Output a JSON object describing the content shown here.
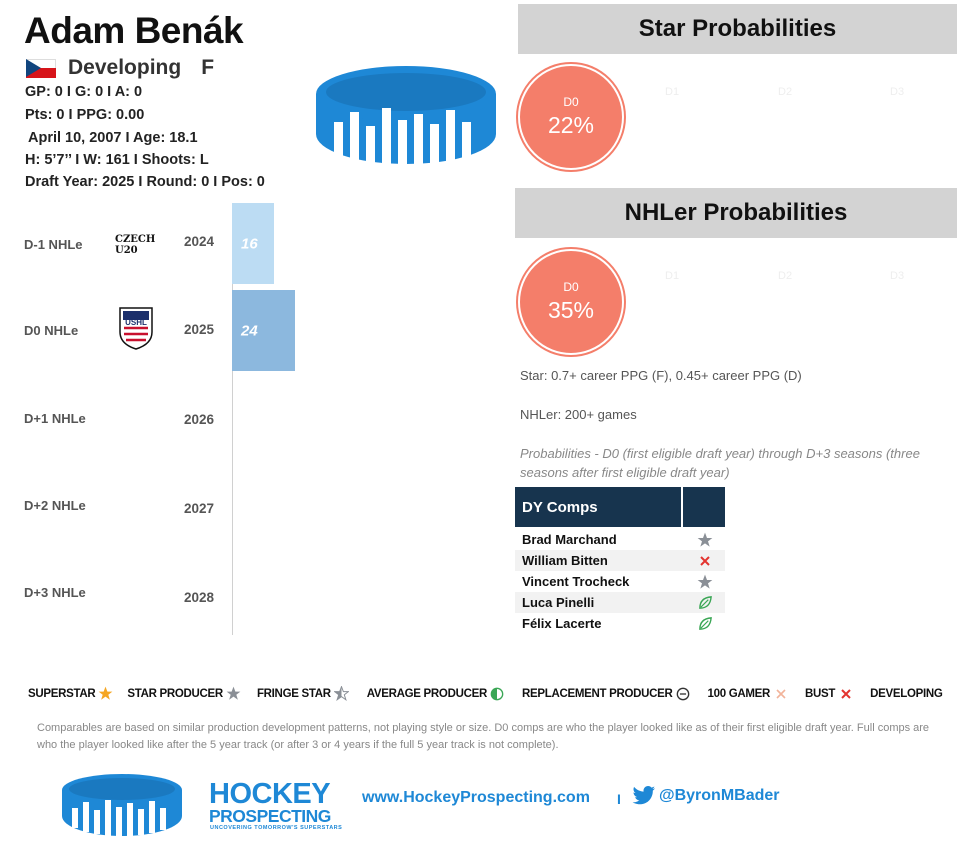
{
  "player": {
    "name": "Adam Benák",
    "status": "Developing",
    "position": "F",
    "stats_line1": "GP: 0 I G: 0 I A: 0",
    "stats_line2": "Pts: 0 I PPG: 0.00",
    "bio_line": "April 10, 2007 I Age: 18.1",
    "size_line": "H: 5’7’’ I W: 161 I Shoots: L",
    "draft_line": "Draft Year: 2025 I Round: 0 I Pos: 0"
  },
  "seasons": [
    {
      "label": "D-1 NHLe",
      "year": "2024",
      "league": "CZECH U20",
      "nhle": 16,
      "nhle_text": "16",
      "color": "#bcdcf3"
    },
    {
      "label": "D0 NHLe",
      "year": "2025",
      "league": "USHL",
      "nhle": 24,
      "nhle_text": "24",
      "color": "#8cb8de"
    },
    {
      "label": "D+1 NHLe",
      "year": "2026"
    },
    {
      "label": "D+2 NHLe",
      "year": "2027"
    },
    {
      "label": "D+3 NHLe",
      "year": "2028"
    }
  ],
  "logos": {
    "czech_line1": "CZECH",
    "czech_line2": "U20",
    "ushl_text": "USHL"
  },
  "star": {
    "title": "Star Probabilities",
    "d0_label": "D0",
    "d0_value": "22%",
    "future_labels": [
      "D1",
      "D2",
      "D3"
    ]
  },
  "nhler": {
    "title": "NHLer Probabilities",
    "d0_label": "D0",
    "d0_value": "35%",
    "future_labels": [
      "D1",
      "D2",
      "D3"
    ]
  },
  "notes": {
    "star_def": "Star: 0.7+ career PPG (F), 0.45+ career PPG (D)",
    "nhler_def": "NHLer: 200+ games",
    "prob_def": "Probabilities - D0 (first eligible draft year) through D+3 seasons (three seasons after first eligible draft year)"
  },
  "comps": {
    "header": "DY Comps",
    "rows": [
      {
        "name": "Brad Marchand",
        "icon": "star-producer-icon"
      },
      {
        "name": "William Bitten",
        "icon": "bust-icon"
      },
      {
        "name": "Vincent Trocheck",
        "icon": "star-producer-icon"
      },
      {
        "name": "Luca Pinelli",
        "icon": "developing-leaf-icon"
      },
      {
        "name": "Félix Lacerte",
        "icon": "developing-leaf-icon"
      }
    ]
  },
  "legend": [
    {
      "label": "SUPERSTAR",
      "icon": "superstar-icon"
    },
    {
      "label": "STAR PRODUCER",
      "icon": "star-producer-icon"
    },
    {
      "label": "FRINGE STAR",
      "icon": "fringe-star-icon"
    },
    {
      "label": "AVERAGE PRODUCER",
      "icon": "average-producer-icon"
    },
    {
      "label": "REPLACEMENT PRODUCER",
      "icon": "replacement-producer-icon"
    },
    {
      "label": "100 GAMER",
      "icon": "hundred-gamer-icon"
    },
    {
      "label": "BUST",
      "icon": "bust-icon"
    },
    {
      "label": "DEVELOPING",
      "icon": "developing-leaf-icon"
    }
  ],
  "footnote": "Comparables are based on similar production development patterns, not playing style or size. D0 comps are who the player looked like as of their first eligible draft year. Full comps are who the player looked like after the 5 year track (or after 3 or 4 years if the full 5 year track is not complete).",
  "footer": {
    "brand_line1": "HOCKEY",
    "brand_line2": "PROSPECTING",
    "tagline": "UNCOVERING TOMORROW'S SUPERSTARS",
    "url": "www.HockeyProspecting.com",
    "separator": "I",
    "twitter": "@ByronMBader"
  },
  "colors": {
    "probability_circle": "#f47e6a",
    "comps_header": "#17344e",
    "brand_blue": "#1e88d6",
    "section_header_bg": "#d3d3d3"
  }
}
